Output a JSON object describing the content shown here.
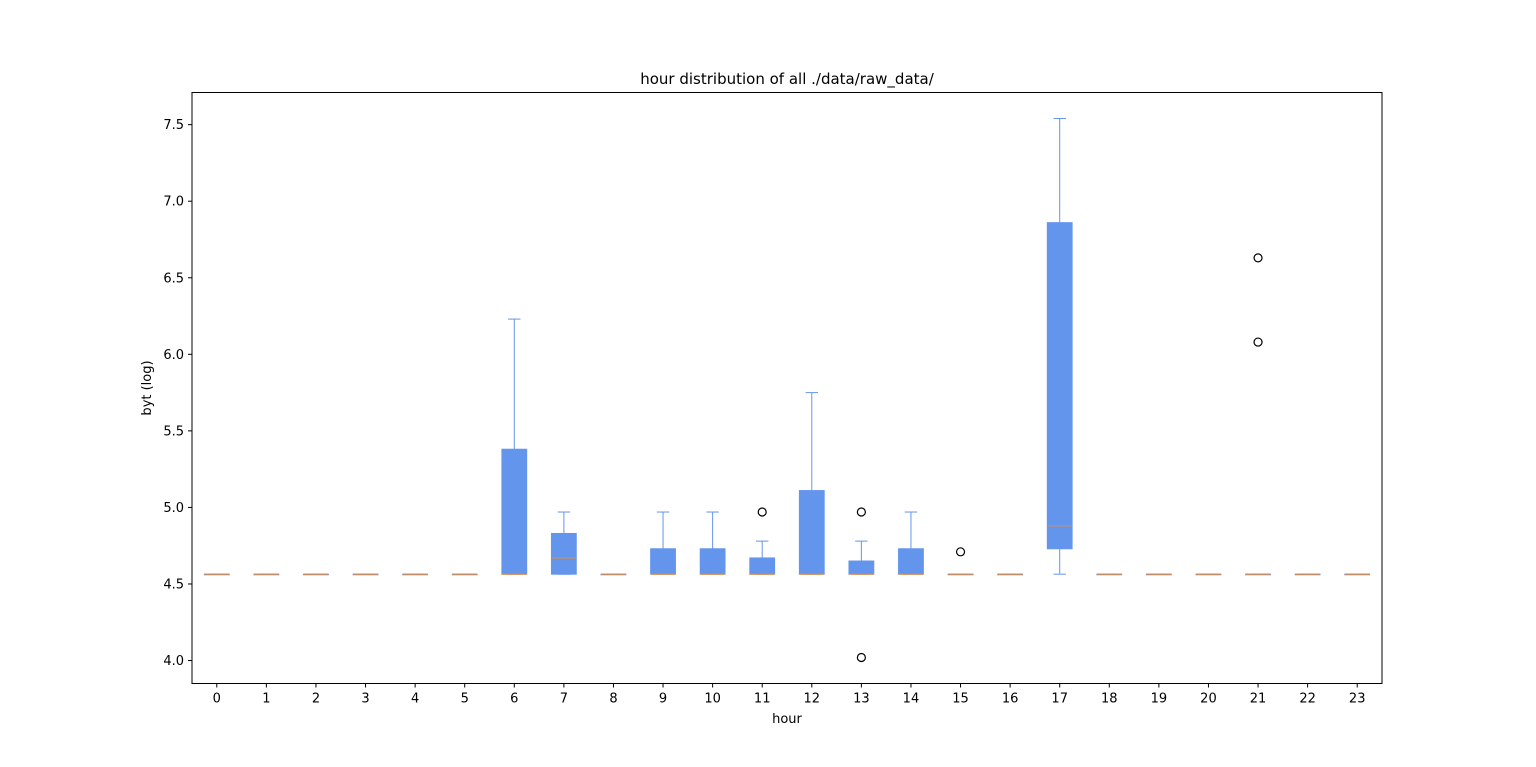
{
  "chart_data": {
    "type": "box",
    "title": "hour distribution of all ./data/raw_data/",
    "xlabel": "hour",
    "ylabel": "byt (log)",
    "ylim": [
      3.85,
      7.71
    ],
    "y_ticks": [
      "4.0",
      "4.5",
      "5.0",
      "5.5",
      "6.0",
      "6.5",
      "7.0",
      "7.5"
    ],
    "y_tick_values": [
      4.0,
      4.5,
      5.0,
      5.5,
      6.0,
      6.5,
      7.0,
      7.5
    ],
    "categories": [
      "0",
      "1",
      "2",
      "3",
      "4",
      "5",
      "6",
      "7",
      "8",
      "9",
      "10",
      "11",
      "12",
      "13",
      "14",
      "15",
      "16",
      "17",
      "18",
      "19",
      "20",
      "21",
      "22",
      "23"
    ],
    "grid": false,
    "colors": {
      "box": "#6495ed",
      "median": "#e08a3c",
      "flier_edge": "#000000"
    },
    "boxes": [
      {
        "hour": "0",
        "whislo": 4.564,
        "q1": 4.564,
        "med": 4.564,
        "q3": 4.564,
        "whishi": 4.564,
        "fliers": []
      },
      {
        "hour": "1",
        "whislo": 4.564,
        "q1": 4.564,
        "med": 4.564,
        "q3": 4.564,
        "whishi": 4.564,
        "fliers": []
      },
      {
        "hour": "2",
        "whislo": 4.564,
        "q1": 4.564,
        "med": 4.564,
        "q3": 4.564,
        "whishi": 4.564,
        "fliers": []
      },
      {
        "hour": "3",
        "whislo": 4.564,
        "q1": 4.564,
        "med": 4.564,
        "q3": 4.564,
        "whishi": 4.564,
        "fliers": []
      },
      {
        "hour": "4",
        "whislo": 4.564,
        "q1": 4.564,
        "med": 4.564,
        "q3": 4.564,
        "whishi": 4.564,
        "fliers": []
      },
      {
        "hour": "5",
        "whislo": 4.564,
        "q1": 4.564,
        "med": 4.564,
        "q3": 4.564,
        "whishi": 4.564,
        "fliers": []
      },
      {
        "hour": "6",
        "whislo": 4.564,
        "q1": 4.564,
        "med": 4.564,
        "q3": 5.38,
        "whishi": 6.23,
        "fliers": []
      },
      {
        "hour": "7",
        "whislo": 4.564,
        "q1": 4.564,
        "med": 4.67,
        "q3": 4.83,
        "whishi": 4.97,
        "fliers": []
      },
      {
        "hour": "8",
        "whislo": 4.564,
        "q1": 4.564,
        "med": 4.564,
        "q3": 4.564,
        "whishi": 4.564,
        "fliers": []
      },
      {
        "hour": "9",
        "whislo": 4.564,
        "q1": 4.564,
        "med": 4.564,
        "q3": 4.73,
        "whishi": 4.97,
        "fliers": []
      },
      {
        "hour": "10",
        "whislo": 4.564,
        "q1": 4.564,
        "med": 4.564,
        "q3": 4.73,
        "whishi": 4.97,
        "fliers": []
      },
      {
        "hour": "11",
        "whislo": 4.564,
        "q1": 4.564,
        "med": 4.564,
        "q3": 4.67,
        "whishi": 4.78,
        "fliers": [
          4.97
        ]
      },
      {
        "hour": "12",
        "whislo": 4.564,
        "q1": 4.564,
        "med": 4.564,
        "q3": 5.11,
        "whishi": 5.75,
        "fliers": []
      },
      {
        "hour": "13",
        "whislo": 4.564,
        "q1": 4.564,
        "med": 4.564,
        "q3": 4.65,
        "whishi": 4.78,
        "fliers": [
          4.97,
          4.02
        ]
      },
      {
        "hour": "14",
        "whislo": 4.564,
        "q1": 4.564,
        "med": 4.564,
        "q3": 4.73,
        "whishi": 4.97,
        "fliers": []
      },
      {
        "hour": "15",
        "whislo": 4.564,
        "q1": 4.564,
        "med": 4.564,
        "q3": 4.564,
        "whishi": 4.564,
        "fliers": [
          4.71
        ]
      },
      {
        "hour": "16",
        "whislo": 4.564,
        "q1": 4.564,
        "med": 4.564,
        "q3": 4.564,
        "whishi": 4.564,
        "fliers": []
      },
      {
        "hour": "17",
        "whislo": 4.564,
        "q1": 4.73,
        "med": 4.88,
        "q3": 6.86,
        "whishi": 7.54,
        "fliers": []
      },
      {
        "hour": "18",
        "whislo": 4.564,
        "q1": 4.564,
        "med": 4.564,
        "q3": 4.564,
        "whishi": 4.564,
        "fliers": []
      },
      {
        "hour": "19",
        "whislo": 4.564,
        "q1": 4.564,
        "med": 4.564,
        "q3": 4.564,
        "whishi": 4.564,
        "fliers": []
      },
      {
        "hour": "20",
        "whislo": 4.564,
        "q1": 4.564,
        "med": 4.564,
        "q3": 4.564,
        "whishi": 4.564,
        "fliers": []
      },
      {
        "hour": "21",
        "whislo": 4.564,
        "q1": 4.564,
        "med": 4.564,
        "q3": 4.564,
        "whishi": 4.564,
        "fliers": [
          6.63,
          6.08
        ]
      },
      {
        "hour": "22",
        "whislo": 4.564,
        "q1": 4.564,
        "med": 4.564,
        "q3": 4.564,
        "whishi": 4.564,
        "fliers": []
      },
      {
        "hour": "23",
        "whislo": 4.564,
        "q1": 4.564,
        "med": 4.564,
        "q3": 4.564,
        "whishi": 4.564,
        "fliers": []
      }
    ]
  }
}
